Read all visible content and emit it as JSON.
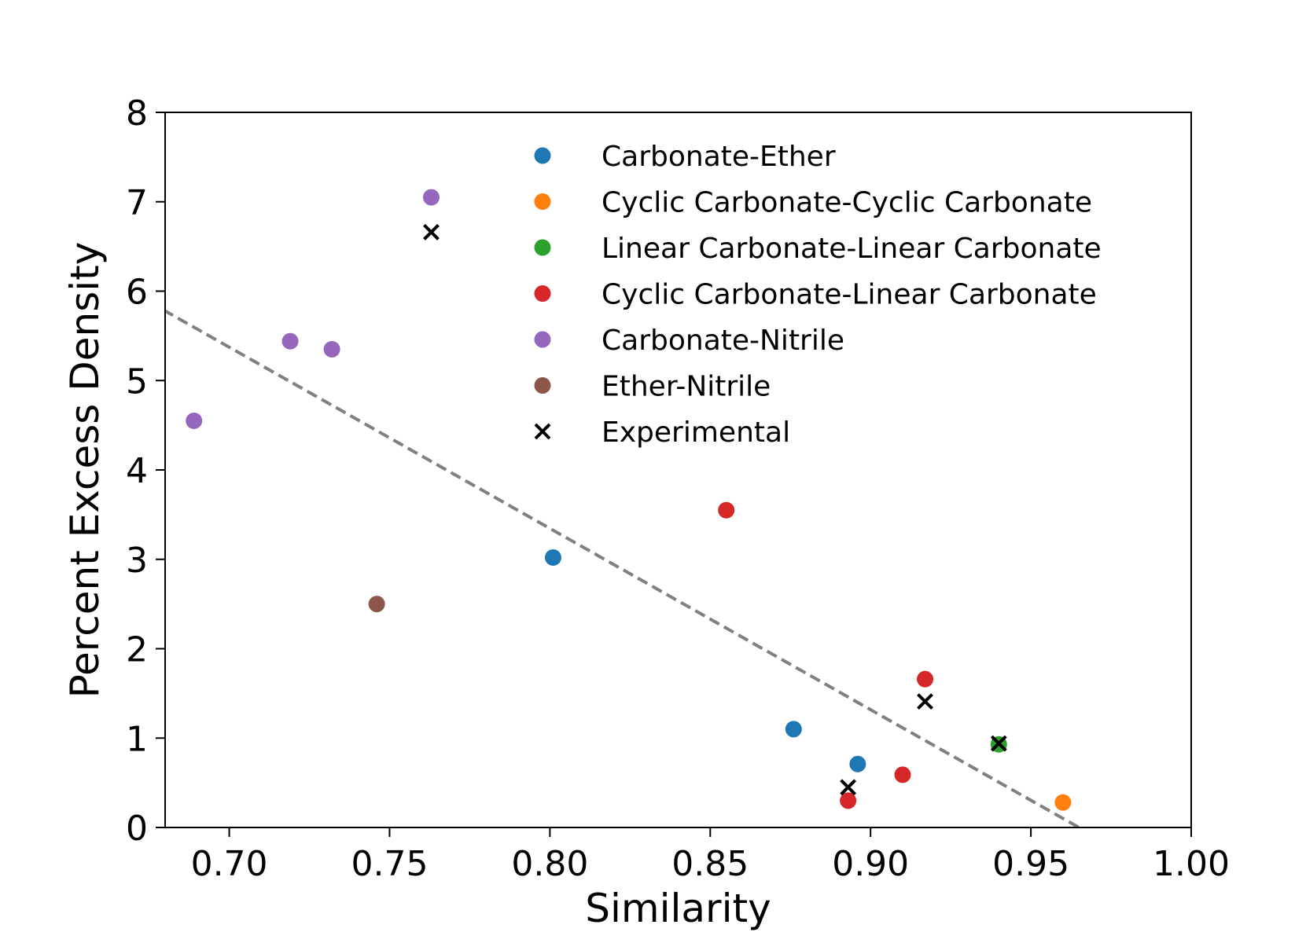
{
  "chart_data": {
    "type": "scatter",
    "title": "",
    "xlabel": "Similarity",
    "ylabel": "Percent Excess Density",
    "xlim": [
      0.68,
      1.0
    ],
    "ylim": [
      0,
      8
    ],
    "xticks": [
      "0.70",
      "0.75",
      "0.80",
      "0.85",
      "0.90",
      "0.95",
      "1.00"
    ],
    "yticks": [
      "0",
      "1",
      "2",
      "3",
      "4",
      "5",
      "6",
      "7",
      "8"
    ],
    "xtick_values": [
      0.7,
      0.75,
      0.8,
      0.85,
      0.9,
      0.95,
      1.0
    ],
    "ytick_values": [
      0,
      1,
      2,
      3,
      4,
      5,
      6,
      7,
      8
    ],
    "grid": false,
    "legend_position": "top-right",
    "series": [
      {
        "name": "Carbonate-Ether",
        "marker": "circle",
        "color": "#1f77b4",
        "points": [
          [
            0.801,
            3.02
          ],
          [
            0.876,
            1.1
          ],
          [
            0.896,
            0.71
          ]
        ]
      },
      {
        "name": "Cyclic Carbonate-Cyclic Carbonate",
        "marker": "circle",
        "color": "#ff7f0e",
        "points": [
          [
            0.96,
            0.28
          ]
        ]
      },
      {
        "name": "Linear Carbonate-Linear Carbonate",
        "marker": "circle",
        "color": "#2ca02c",
        "points": [
          [
            0.94,
            0.93
          ]
        ]
      },
      {
        "name": "Cyclic Carbonate-Linear Carbonate",
        "marker": "circle",
        "color": "#d62728",
        "points": [
          [
            0.855,
            3.55
          ],
          [
            0.917,
            1.66
          ],
          [
            0.91,
            0.59
          ],
          [
            0.893,
            0.3
          ]
        ]
      },
      {
        "name": "Carbonate-Nitrile",
        "marker": "circle",
        "color": "#9467bd",
        "points": [
          [
            0.763,
            7.05
          ],
          [
            0.719,
            5.44
          ],
          [
            0.732,
            5.35
          ],
          [
            0.689,
            4.55
          ]
        ]
      },
      {
        "name": "Ether-Nitrile",
        "marker": "circle",
        "color": "#8c564b",
        "points": [
          [
            0.746,
            2.5
          ]
        ]
      },
      {
        "name": "Experimental",
        "marker": "x",
        "color": "#000000",
        "points": [
          [
            0.763,
            6.66
          ],
          [
            0.917,
            1.41
          ],
          [
            0.94,
            0.94
          ],
          [
            0.893,
            0.45
          ]
        ]
      }
    ],
    "trendline": {
      "style": "dashed",
      "color": "#808080",
      "points": [
        [
          0.675,
          5.88
        ],
        [
          0.965,
          0.0
        ]
      ]
    }
  }
}
